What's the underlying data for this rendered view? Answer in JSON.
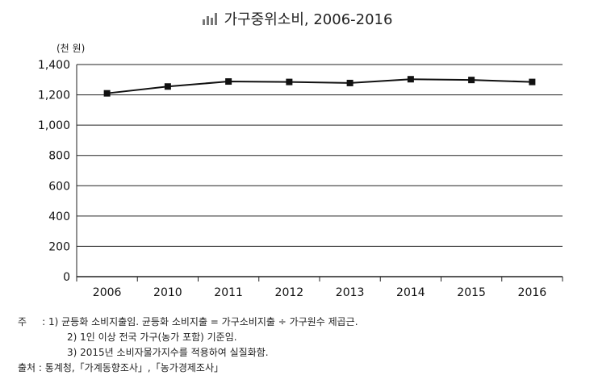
{
  "title": "가구중위소비, 2006-2016",
  "unit_label": "(천 원)",
  "chart_data": {
    "type": "line",
    "title": "가구중위소비, 2006-2016",
    "ylabel": "(천 원)",
    "xlabel": "",
    "categories": [
      "2006",
      "2010",
      "2011",
      "2012",
      "2013",
      "2014",
      "2015",
      "2016"
    ],
    "series": [
      {
        "values": [
          1210,
          1255,
          1288,
          1285,
          1278,
          1303,
          1298,
          1285
        ]
      }
    ],
    "ylim": [
      0,
      1400
    ],
    "yticks": [
      0,
      200,
      400,
      600,
      800,
      1000,
      1200,
      1400
    ],
    "ytick_labels": [
      "0",
      "200",
      "400",
      "600",
      "800",
      "1,000",
      "1,200",
      "1,400"
    ],
    "grid": "horizontal",
    "marker": "square"
  },
  "notes": {
    "label": "주",
    "colon": ":",
    "items": [
      "1) 균등화 소비지출임. 균등화 소비지출 = 가구소비지출 ÷ 가구원수 제곱근.",
      "2) 1인 이상 전국 가구(농가 포함) 기준임.",
      "3) 2015년 소비자물가지수를 적용하여 실질화함."
    ],
    "source": "출처 : 통계청,「가계동향조사」,「농가경제조사」"
  }
}
